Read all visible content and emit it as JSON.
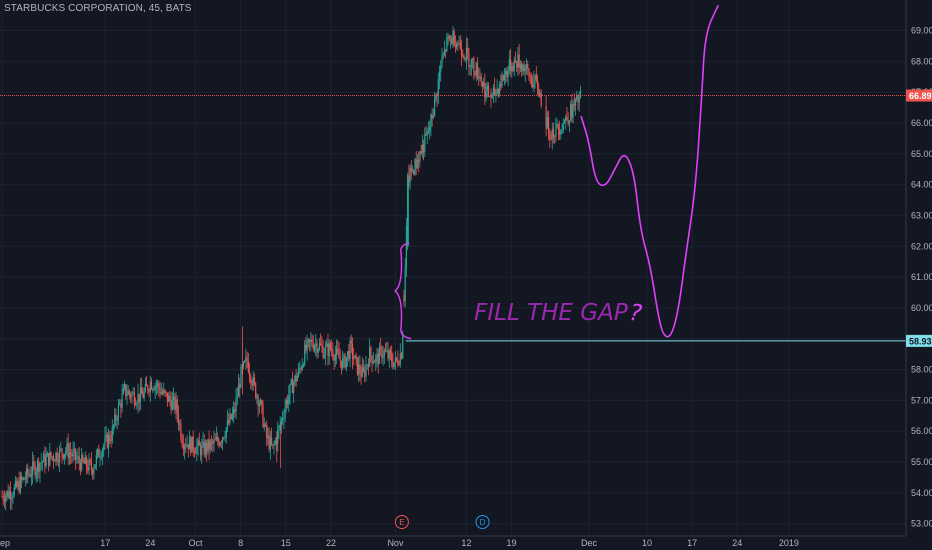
{
  "header": {
    "title": "STARBUCKS CORPORATION, 45, BATS"
  },
  "colors": {
    "background": "#131722",
    "grid": "#1e2230",
    "up": "#26a69a",
    "down": "#ef5350",
    "drawing": "#e040fb",
    "annotation_text": "#9c27b0",
    "current_price_line": "#ef5350",
    "gap_line": "#80deea",
    "axis_text": "#b2b5be"
  },
  "chart_data": {
    "type": "candlestick",
    "y_axis": {
      "min": 52.6,
      "max": 69.6,
      "ticks": [
        "53.00",
        "54.00",
        "55.00",
        "56.00",
        "57.00",
        "58.00",
        "59.00",
        "60.00",
        "61.00",
        "62.00",
        "63.00",
        "64.00",
        "65.00",
        "66.00",
        "67.00",
        "68.00",
        "69.00"
      ],
      "position": "right"
    },
    "x_axis": {
      "ticks": [
        {
          "label": "Sep",
          "day": 0
        },
        {
          "label": "17",
          "day": 16
        },
        {
          "label": "24",
          "day": 23
        },
        {
          "label": "Oct",
          "day": 30
        },
        {
          "label": "8",
          "day": 37
        },
        {
          "label": "15",
          "day": 44
        },
        {
          "label": "22",
          "day": 51
        },
        {
          "label": "Nov",
          "day": 61
        },
        {
          "label": "12",
          "day": 72
        },
        {
          "label": "19",
          "day": 79
        },
        {
          "label": "Dec",
          "day": 91
        },
        {
          "label": "10",
          "day": 100
        },
        {
          "label": "17",
          "day": 107
        },
        {
          "label": "24",
          "day": 114
        },
        {
          "label": "2019",
          "day": 122
        }
      ]
    },
    "price_path": [
      [
        0,
        53.9
      ],
      [
        2,
        54.1
      ],
      [
        4,
        54.6
      ],
      [
        6,
        55.0
      ],
      [
        8,
        55.2
      ],
      [
        10,
        55.4
      ],
      [
        12,
        55.0
      ],
      [
        14,
        54.8
      ],
      [
        15,
        55.3
      ],
      [
        17,
        55.9
      ],
      [
        18,
        56.7
      ],
      [
        19,
        57.3
      ],
      [
        21,
        57.1
      ],
      [
        22,
        57.2
      ],
      [
        23,
        57.6
      ],
      [
        24,
        57.5
      ],
      [
        25,
        57.2
      ],
      [
        27,
        56.8
      ],
      [
        28,
        55.7
      ],
      [
        30,
        55.5
      ],
      [
        31,
        55.4
      ],
      [
        33,
        55.6
      ],
      [
        34,
        55.8
      ],
      [
        36,
        56.6
      ],
      [
        37,
        57.8
      ],
      [
        38,
        58.3
      ],
      [
        39,
        57.5
      ],
      [
        40,
        56.9
      ],
      [
        41,
        55.8
      ],
      [
        42,
        55.4
      ],
      [
        43,
        56.1
      ],
      [
        44,
        56.9
      ],
      [
        45,
        57.5
      ],
      [
        46,
        57.9
      ],
      [
        47,
        58.6
      ],
      [
        48,
        58.9
      ],
      [
        49,
        58.8
      ],
      [
        50,
        58.6
      ],
      [
        51,
        58.7
      ],
      [
        52,
        58.4
      ],
      [
        53,
        58.2
      ],
      [
        54,
        58.7
      ],
      [
        55,
        58.1
      ],
      [
        56,
        57.8
      ],
      [
        57,
        58.5
      ],
      [
        58,
        58.3
      ],
      [
        59,
        58.6
      ],
      [
        60,
        58.4
      ],
      [
        61,
        58.2
      ],
      [
        62,
        58.6
      ],
      [
        63,
        64.2
      ],
      [
        64,
        64.6
      ],
      [
        65,
        65.1
      ],
      [
        66,
        65.6
      ],
      [
        67,
        66.5
      ],
      [
        68,
        67.8
      ],
      [
        69,
        68.6
      ],
      [
        70,
        68.8
      ],
      [
        71,
        68.5
      ],
      [
        72,
        68.2
      ],
      [
        73,
        67.9
      ],
      [
        74,
        67.6
      ],
      [
        75,
        67.0
      ],
      [
        76,
        66.8
      ],
      [
        77,
        67.2
      ],
      [
        78,
        67.6
      ],
      [
        79,
        67.9
      ],
      [
        80,
        68.0
      ],
      [
        81,
        67.8
      ],
      [
        82,
        67.4
      ],
      [
        83,
        67.2
      ],
      [
        83.8,
        66.6
      ],
      [
        84.2,
        66.1
      ],
      [
        85,
        65.7
      ],
      [
        86,
        65.8
      ],
      [
        87,
        66.0
      ],
      [
        88,
        66.3
      ],
      [
        89,
        66.6
      ],
      [
        89.8,
        66.9
      ]
    ],
    "current_price": 66.89,
    "current_price_label": "66.89",
    "gap_level": 58.93,
    "gap_level_label": "58.93",
    "annotation": "FILL THE GAP",
    "annotation_question_mark": "?",
    "drawing_path": [
      [
        89.8,
        66.2
      ],
      [
        91,
        65.4
      ],
      [
        92,
        64.1
      ],
      [
        93.5,
        63.9
      ],
      [
        95,
        64.5
      ],
      [
        96.5,
        65.1
      ],
      [
        98,
        64.4
      ],
      [
        99,
        62.5
      ],
      [
        100.5,
        61.4
      ],
      [
        102,
        59.4
      ],
      [
        103,
        59.0
      ],
      [
        104,
        59.2
      ],
      [
        105,
        60.1
      ],
      [
        106,
        61.7
      ],
      [
        107.5,
        63.8
      ],
      [
        108.5,
        66.9
      ],
      [
        109,
        68.9
      ],
      [
        111,
        69.8
      ]
    ],
    "gap_brace": {
      "day": 62.5,
      "top": 62.1,
      "bottom": 59.0
    },
    "events": [
      {
        "label": "E",
        "day": 62,
        "color": "#ef5350"
      },
      {
        "label": "D",
        "day": 74.5,
        "color": "#2196f3"
      }
    ],
    "grid": true,
    "legend": "none"
  }
}
